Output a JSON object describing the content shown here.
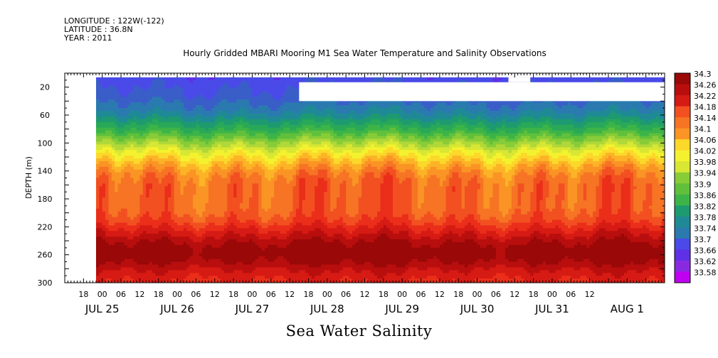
{
  "header": {
    "longitude": "LONGITUDE : 122W(-122)",
    "latitude": "LATITUDE : 36.8N",
    "year": "YEAR : 2011",
    "title": "Hourly Gridded MBARI Mooring M1 Sea Water Temperature and Salinity Observations"
  },
  "footer": {
    "variable_label": "Sea Water Salinity"
  },
  "chart_data": {
    "type": "heatmap",
    "title": "Hourly Gridded MBARI Mooring M1 Sea Water Temperature and Salinity Observations",
    "xlabel": "",
    "ylabel": "DEPTH (m)",
    "ylim": [
      300,
      0
    ],
    "y_ticks": [
      20,
      60,
      100,
      140,
      180,
      220,
      260,
      300
    ],
    "x_hour_ticks": [
      "18",
      "00",
      "06",
      "12",
      "18",
      "00",
      "06",
      "12",
      "18",
      "00",
      "06",
      "12",
      "18",
      "00",
      "06",
      "12",
      "18",
      "00",
      "06",
      "12",
      "18",
      "00",
      "06",
      "12",
      "18",
      "00",
      "06",
      "12"
    ],
    "x_date_labels": [
      "JUL 25",
      "JUL 26",
      "JUL 27",
      "JUL 28",
      "JUL 29",
      "JUL 30",
      "JUL 31",
      "AUG  1"
    ],
    "x_range_hours": [
      0,
      192
    ],
    "data_start_hour": 10,
    "colorbar": {
      "labels": [
        "34.3",
        "34.26",
        "34.22",
        "34.18",
        "34.14",
        "34.1",
        "34.06",
        "34.02",
        "33.98",
        "33.94",
        "33.9",
        "33.86",
        "33.82",
        "33.78",
        "33.74",
        "33.7",
        "33.66",
        "33.62",
        "33.58"
      ],
      "min": 33.58,
      "max": 34.3,
      "step": 0.02
    },
    "depth_profile": {
      "depth_m": [
        0,
        10,
        20,
        30,
        40,
        50,
        60,
        70,
        80,
        90,
        100,
        110,
        120,
        130,
        140,
        150,
        160,
        170,
        180,
        190,
        200,
        210,
        220,
        230,
        240,
        250,
        260,
        270,
        280,
        290,
        300
      ],
      "salinity": [
        33.68,
        33.69,
        33.7,
        33.71,
        33.73,
        33.75,
        33.78,
        33.82,
        33.86,
        33.91,
        33.96,
        34.01,
        34.05,
        34.09,
        34.12,
        34.14,
        34.15,
        34.15,
        34.15,
        34.15,
        34.16,
        34.18,
        34.21,
        34.24,
        34.27,
        34.29,
        34.29,
        34.27,
        34.24,
        34.22,
        34.2
      ]
    }
  }
}
